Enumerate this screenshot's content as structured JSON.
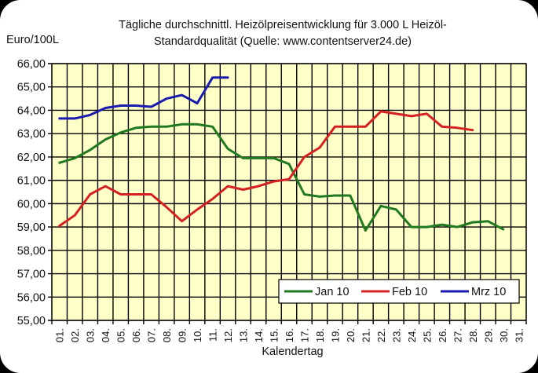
{
  "chart_data": {
    "type": "line",
    "title": "Tägliche durchschnittl. Heizölpreisentwicklung für 3.000 L Heizöl-Standardqualität (Quelle: www.contentserver24.de)",
    "title_lines": [
      "Tägliche durchschnittl. Heizölpreisentwicklung für 3.000 L Heizöl-",
      "Standardqualität (Quelle: www.contentserver24.de)"
    ],
    "xlabel": "Kalendertag",
    "ylabel": "Euro/100L",
    "ylim": [
      55,
      66
    ],
    "yticks": [
      "55,00",
      "56,00",
      "57,00",
      "58,00",
      "59,00",
      "60,00",
      "61,00",
      "62,00",
      "63,00",
      "64,00",
      "65,00",
      "66,00"
    ],
    "categories": [
      "01.",
      "02.",
      "03.",
      "04.",
      "05.",
      "06.",
      "07.",
      "08.",
      "09.",
      "10.",
      "11.",
      "12.",
      "13.",
      "14.",
      "15.",
      "16.",
      "17.",
      "18.",
      "19.",
      "20.",
      "21.",
      "22.",
      "23.",
      "24.",
      "25.",
      "26.",
      "27.",
      "28.",
      "29.",
      "30.",
      "31."
    ],
    "grid": true,
    "legend_position": "lower right, inside plot",
    "series": [
      {
        "name": "Jan 10",
        "color": "#1f7a1f",
        "values": [
          61.75,
          61.95,
          62.3,
          62.75,
          63.05,
          63.25,
          63.3,
          63.3,
          63.4,
          63.4,
          63.3,
          62.35,
          61.95,
          61.95,
          61.95,
          61.7,
          60.4,
          60.3,
          60.35,
          60.35,
          58.85,
          59.9,
          59.75,
          59.0,
          59.0,
          59.1,
          59.0,
          59.2,
          59.25,
          58.9
        ]
      },
      {
        "name": "Feb 10",
        "color": "#d42020",
        "values": [
          59.05,
          59.5,
          60.4,
          60.75,
          60.4,
          60.4,
          60.4,
          59.85,
          59.25,
          59.75,
          60.2,
          60.75,
          60.6,
          60.75,
          60.95,
          61.05,
          62.0,
          62.4,
          63.3,
          63.3,
          63.3,
          63.95,
          63.85,
          63.75,
          63.85,
          63.3,
          63.25,
          63.15
        ]
      },
      {
        "name": "Mrz 10",
        "color": "#1a1ab0",
        "values": [
          63.65,
          63.65,
          63.8,
          64.1,
          64.2,
          64.2,
          64.15,
          64.5,
          64.65,
          64.3,
          65.4,
          65.4
        ]
      }
    ],
    "plot_background": "#ffffc8"
  }
}
